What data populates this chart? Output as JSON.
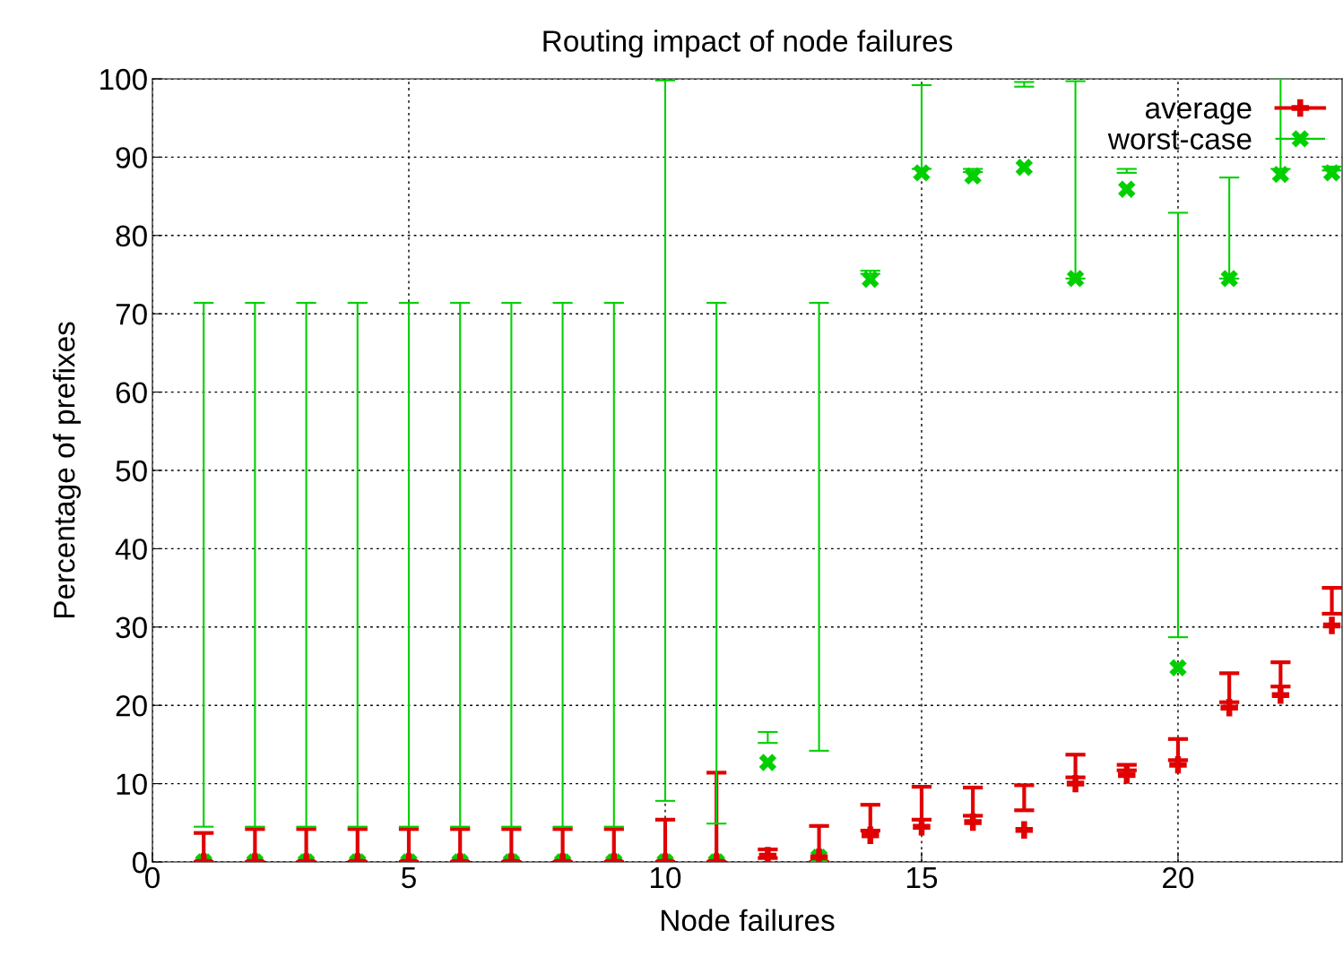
{
  "chart_data": {
    "type": "scatter",
    "title": "Routing impact of node failures",
    "xlabel": "Node failures",
    "ylabel": "Percentage of prefixes",
    "x": [
      1,
      2,
      3,
      4,
      5,
      6,
      7,
      8,
      9,
      10,
      11,
      12,
      13,
      14,
      15,
      16,
      17,
      18,
      19,
      20,
      21,
      22,
      23
    ],
    "series": [
      {
        "name": "average",
        "color": "#e00000",
        "marker": "plus",
        "values": [
          0,
          0,
          0,
          0,
          0,
          0,
          0,
          0,
          0,
          0,
          0,
          0.8,
          0.6,
          3.4,
          4.5,
          5.1,
          4.1,
          10.0,
          11.1,
          12.4,
          19.7,
          21.3,
          30.2
        ],
        "errors": [
          [
            0,
            3.7
          ],
          [
            0,
            4.2
          ],
          [
            0,
            4.2
          ],
          [
            0,
            4.2
          ],
          [
            0,
            4.2
          ],
          [
            0,
            4.2
          ],
          [
            0,
            4.2
          ],
          [
            0,
            4.2
          ],
          [
            0,
            4.2
          ],
          [
            0,
            5.4
          ],
          [
            0,
            11.4
          ],
          [
            0.5,
            1.6
          ],
          [
            0,
            4.6
          ],
          [
            4.0,
            7.3
          ],
          [
            5.4,
            9.6
          ],
          [
            5.9,
            9.5
          ],
          [
            6.6,
            9.8
          ],
          [
            10.8,
            13.7
          ],
          [
            11.7,
            12.4
          ],
          [
            13.0,
            15.7
          ],
          [
            20.4,
            24.1
          ],
          [
            22.4,
            25.5
          ],
          [
            31.7,
            35.0
          ]
        ]
      },
      {
        "name": "worst-case",
        "color": "#00d000",
        "marker": "cross",
        "values": [
          0,
          0,
          0,
          0,
          0,
          0,
          0,
          0,
          0,
          0,
          0,
          12.7,
          0.6,
          74.4,
          88.0,
          87.6,
          88.7,
          74.5,
          85.9,
          24.8,
          74.5,
          87.8,
          88.0
        ],
        "errors": [
          [
            4.5,
            71.4
          ],
          [
            4.5,
            71.4
          ],
          [
            4.5,
            71.4
          ],
          [
            4.5,
            71.4
          ],
          [
            4.5,
            71.4
          ],
          [
            4.5,
            71.4
          ],
          [
            4.5,
            71.4
          ],
          [
            4.5,
            71.4
          ],
          [
            4.5,
            71.4
          ],
          [
            7.8,
            99.8
          ],
          [
            4.9,
            71.4
          ],
          [
            15.2,
            16.6
          ],
          [
            14.2,
            71.4
          ],
          [
            75.1,
            75.5
          ],
          [
            88.5,
            99.2
          ],
          [
            88.1,
            88.5
          ],
          [
            99.0,
            99.6
          ],
          [
            74.5,
            99.7
          ],
          [
            88.0,
            88.5
          ],
          [
            28.7,
            82.9
          ],
          [
            74.5,
            87.4
          ],
          [
            88.5,
            100
          ],
          [
            88.3,
            88.8
          ]
        ]
      }
    ],
    "xlim": [
      0,
      23.2
    ],
    "xticks": [
      0,
      5,
      10,
      15,
      20
    ],
    "ylim": [
      0,
      100
    ],
    "yticks": [
      0,
      10,
      20,
      30,
      40,
      50,
      60,
      70,
      80,
      90,
      100
    ],
    "grid": true,
    "legend": "top right"
  }
}
